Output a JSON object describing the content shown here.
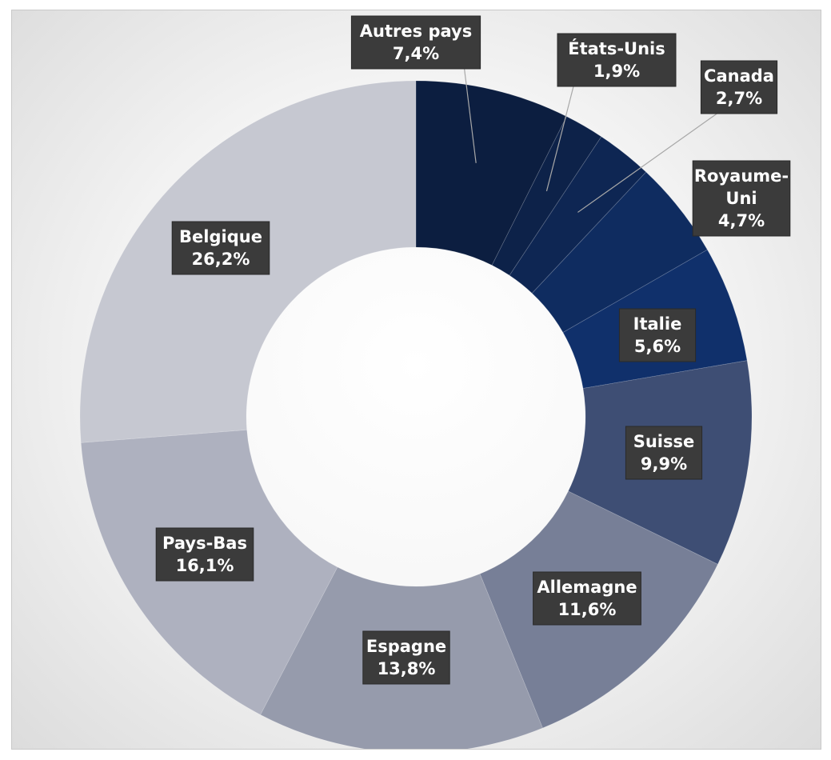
{
  "chart_data": {
    "type": "pie",
    "donut": true,
    "start": "top, clockwise",
    "colors": {
      "Autres pays": "#0c1e40",
      "États-Unis": "#0d2249",
      "Canada": "#0e2653",
      "Royaume-Uni": "#0f2c60",
      "Italie": "#10306b",
      "Suisse": "#3e4e74",
      "Allemagne": "#777f97",
      "Espagne": "#969bac",
      "Pays-Bas": "#aeb1bf",
      "Belgique": "#c6c8d1"
    },
    "slices": [
      {
        "label": "Autres pays",
        "value": 7.4,
        "text": "7,4%",
        "label_lines": [
          "Autres pays"
        ]
      },
      {
        "label": "États-Unis",
        "value": 1.9,
        "text": "1,9%",
        "label_lines": [
          "États-Unis"
        ]
      },
      {
        "label": "Canada",
        "value": 2.7,
        "text": "2,7%",
        "label_lines": [
          "Canada"
        ]
      },
      {
        "label": "Royaume-Uni",
        "value": 4.7,
        "text": "4,7%",
        "label_lines": [
          "Royaume-",
          "Uni"
        ]
      },
      {
        "label": "Italie",
        "value": 5.6,
        "text": "5,6%",
        "label_lines": [
          "Italie"
        ]
      },
      {
        "label": "Suisse",
        "value": 9.9,
        "text": "9,9%",
        "label_lines": [
          "Suisse"
        ]
      },
      {
        "label": "Allemagne",
        "value": 11.6,
        "text": "11,6%",
        "label_lines": [
          "Allemagne"
        ]
      },
      {
        "label": "Espagne",
        "value": 13.8,
        "text": "13,8%",
        "label_lines": [
          "Espagne"
        ]
      },
      {
        "label": "Pays-Bas",
        "value": 16.1,
        "text": "16,1%",
        "label_lines": [
          "Pays-Bas"
        ]
      },
      {
        "label": "Belgique",
        "value": 26.2,
        "text": "26,2%",
        "label_lines": [
          "Belgique"
        ]
      }
    ]
  }
}
